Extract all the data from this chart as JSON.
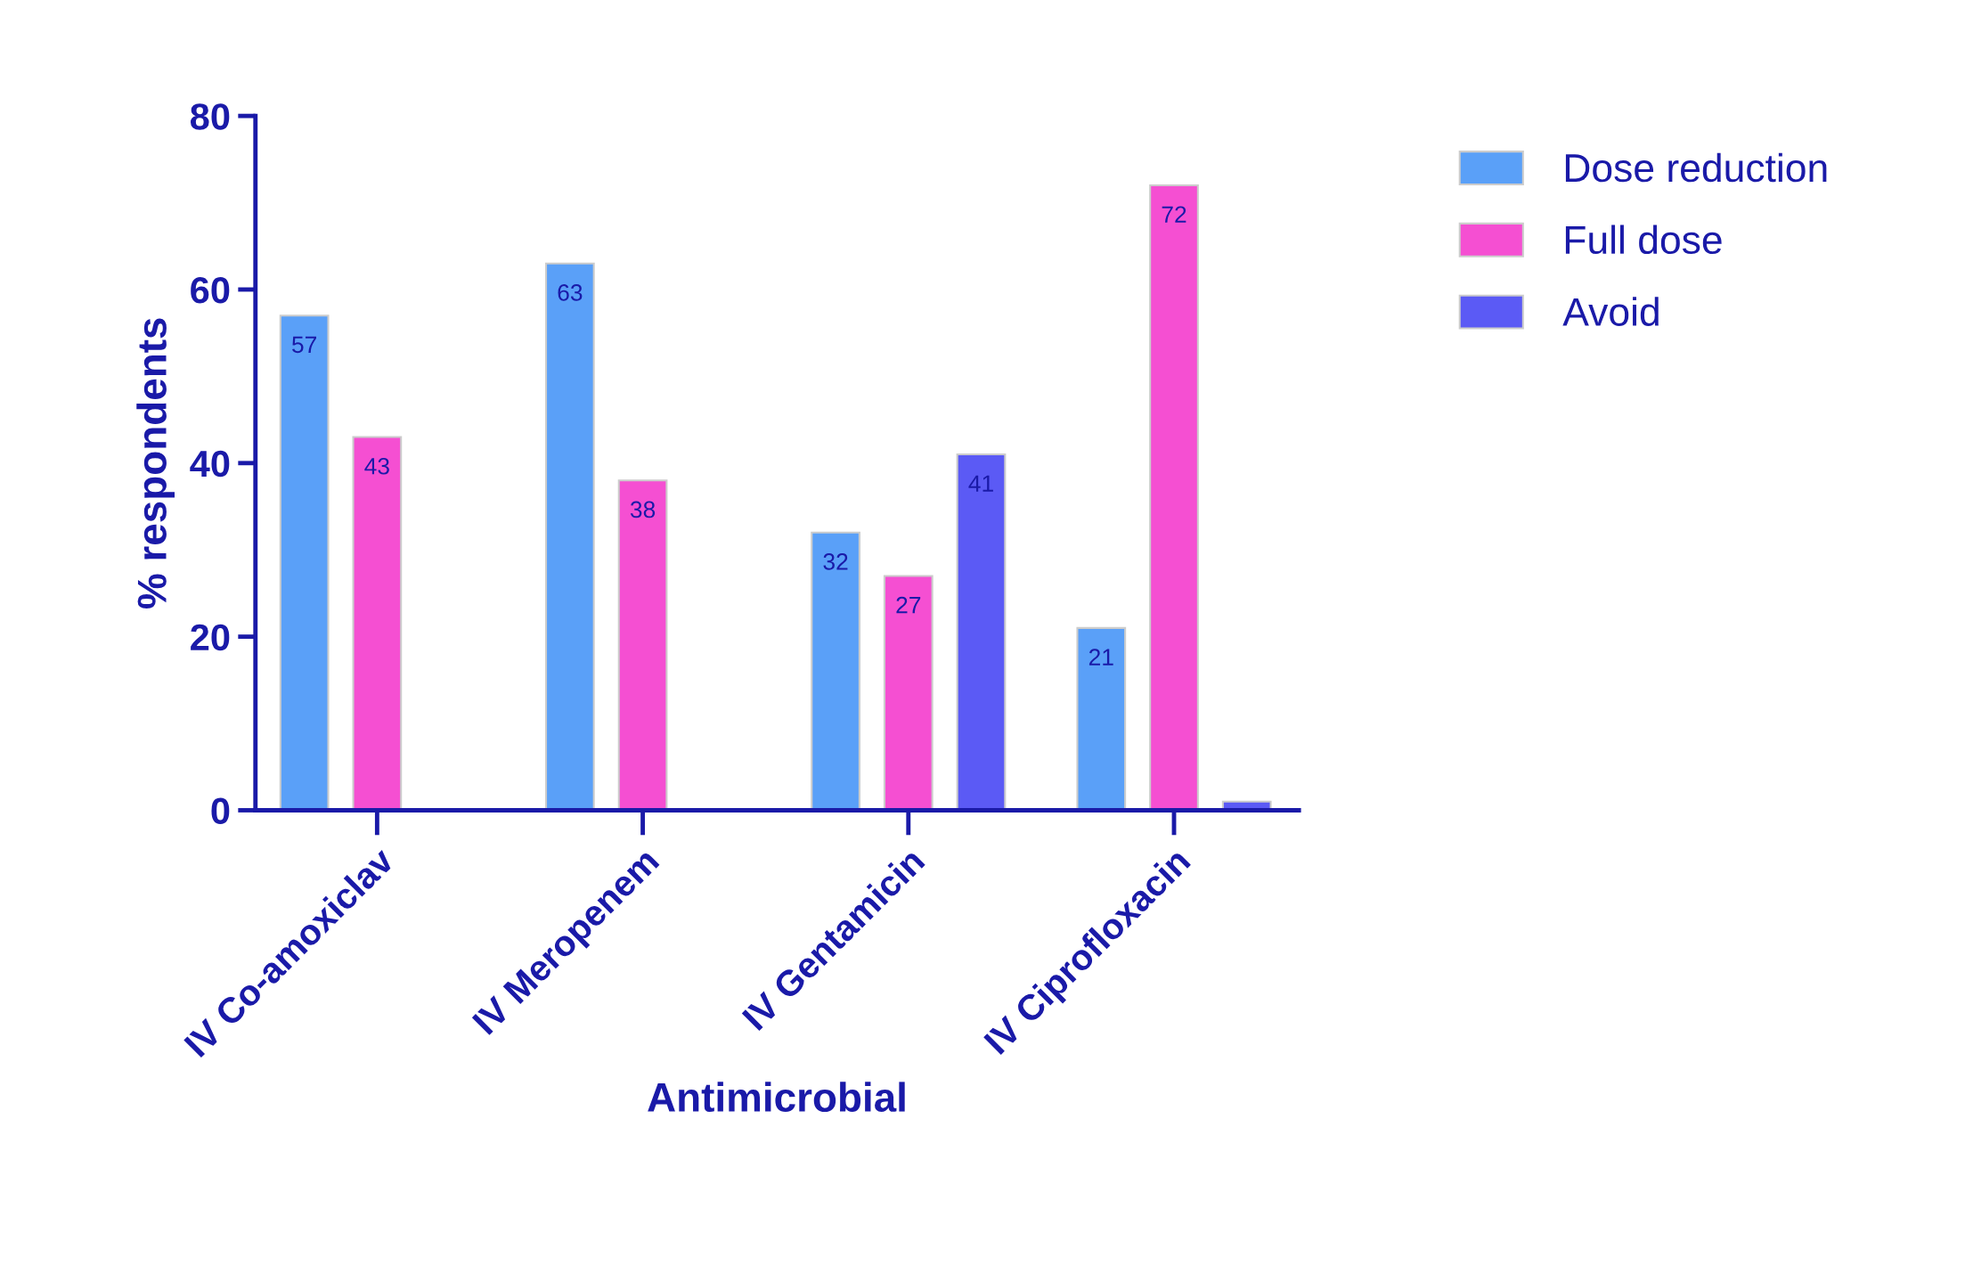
{
  "chart_data": {
    "type": "bar",
    "xlabel": "Antimicrobial",
    "ylabel": "% respondents",
    "categories": [
      "IV Co-amoxiclav",
      "IV Meropenem",
      "IV Gentamicin",
      "IV Ciprofloxacin"
    ],
    "series": [
      {
        "name": "Dose reduction",
        "color": "#5aa0f8",
        "values": [
          57,
          63,
          32,
          21
        ],
        "value_labels": [
          "57",
          "63",
          "32",
          "21"
        ]
      },
      {
        "name": "Full dose",
        "color": "#f54fd2",
        "values": [
          43,
          38,
          27,
          72
        ],
        "value_labels": [
          "43",
          "38",
          "27",
          "72"
        ]
      },
      {
        "name": "Avoid",
        "color": "#5b5af5",
        "values": [
          null,
          null,
          41,
          1
        ],
        "value_labels": [
          null,
          null,
          "41",
          null
        ]
      }
    ],
    "ylim": [
      0,
      80
    ],
    "yticks": [
      0,
      20,
      40,
      60,
      80
    ],
    "grid": false,
    "legend": "right"
  }
}
